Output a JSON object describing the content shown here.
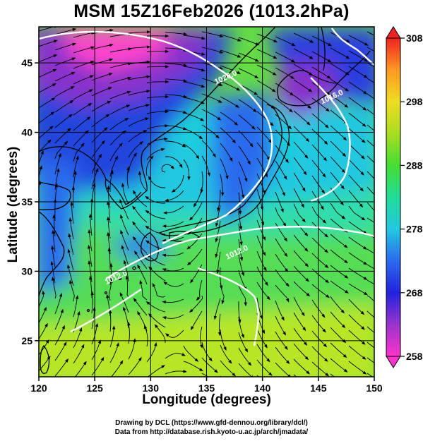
{
  "title": "MSM 15Z16Feb2026 (1013.2hPa)",
  "x_axis": {
    "label": "Longitude (degrees)",
    "min": 120,
    "max": 150,
    "ticks": [
      120,
      125,
      130,
      135,
      140,
      145,
      150
    ]
  },
  "y_axis": {
    "label": "Latitude  (degrees)",
    "min": 22.4,
    "max": 47.6,
    "ticks": [
      25,
      30,
      35,
      40,
      45
    ]
  },
  "colorbar": {
    "min": 258,
    "max": 308,
    "ticks": [
      258,
      268,
      278,
      288,
      298,
      308
    ]
  },
  "isobars": [
    {
      "label": "1020.0",
      "lon": 136.8,
      "lat": 43.8
    },
    {
      "label": "1016.0",
      "lon": 146.3,
      "lat": 42.4
    },
    {
      "label": "1012.0",
      "lon": 137.8,
      "lat": 31.2
    },
    {
      "label": "1012.0",
      "lon": 127.0,
      "lat": 29.4
    }
  ],
  "credits": {
    "line1": "Drawing by DCL (https://www.gfd-dennou.org/library/dcl/)",
    "line2": "Data from http://database.rish.kyoto-u.ac.jp/arch/jmadata/"
  }
}
